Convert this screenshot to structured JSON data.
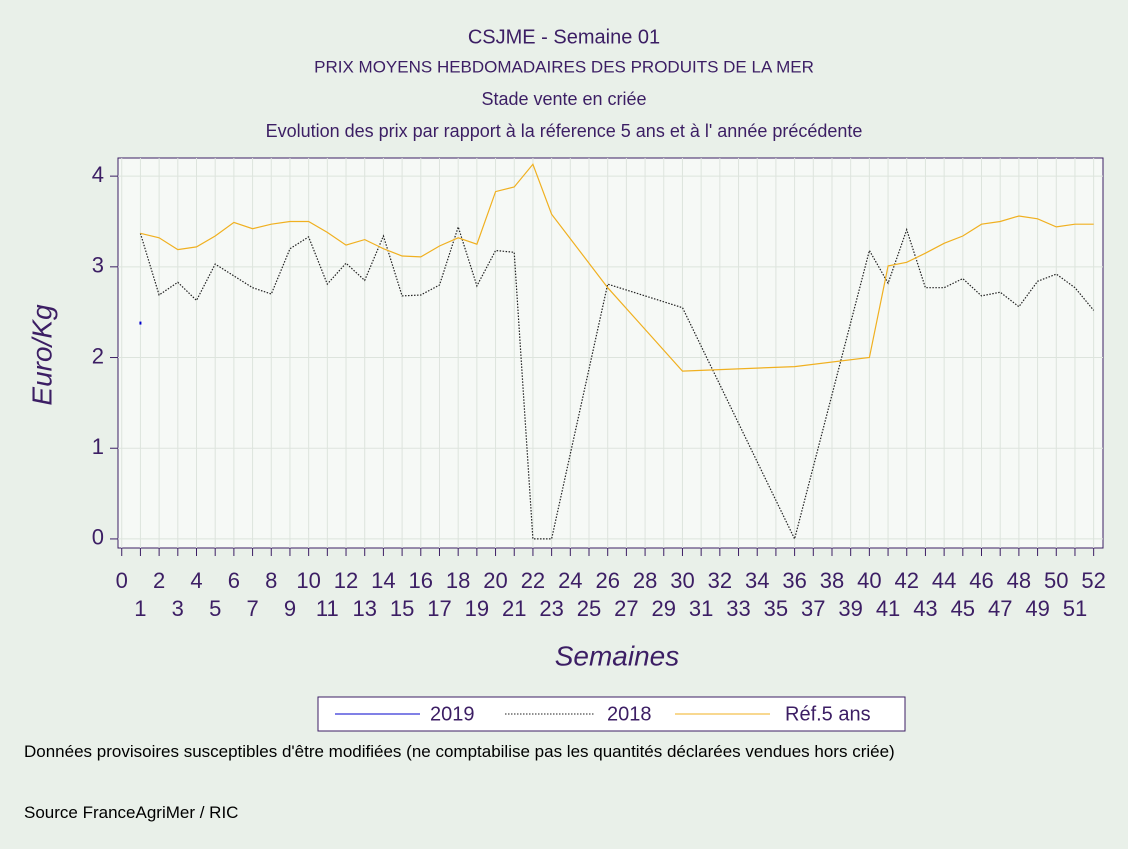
{
  "chart_data": {
    "type": "line",
    "title": "CSJME - Semaine 01",
    "subtitle": "PRIX MOYENS HEBDOMADAIRES DES PRODUITS DE LA MER",
    "subtitle2": "Stade vente en criée",
    "subtitle3": "Evolution des prix par rapport à la réference 5 ans et à l' année précédente",
    "ylabel": "Euro/Kg",
    "xlabel": "Semaines",
    "xlim": [
      -0.2,
      52.5
    ],
    "xticks": [
      0,
      1,
      2,
      3,
      4,
      5,
      6,
      7,
      8,
      9,
      10,
      11,
      12,
      13,
      14,
      15,
      16,
      17,
      18,
      19,
      20,
      21,
      22,
      23,
      24,
      25,
      26,
      27,
      28,
      29,
      30,
      31,
      32,
      33,
      34,
      35,
      36,
      37,
      38,
      39,
      40,
      41,
      42,
      43,
      44,
      45,
      46,
      47,
      48,
      49,
      50,
      51,
      52
    ],
    "ylim": [
      -0.1,
      4.2
    ],
    "yticks": [
      0,
      1,
      2,
      3,
      4
    ],
    "grid": true,
    "series": [
      {
        "name": "2019",
        "color": "#0000cc",
        "dash": "solid",
        "x": [
          1
        ],
        "values": [
          2.38
        ]
      },
      {
        "name": "2018",
        "color": "#222222",
        "dash": "dotted",
        "x": [
          1,
          2,
          3,
          4,
          5,
          6,
          7,
          8,
          9,
          10,
          11,
          12,
          13,
          14,
          15,
          16,
          17,
          18,
          19,
          20,
          21,
          22,
          23,
          26,
          30,
          36,
          40,
          41,
          42,
          43,
          44,
          45,
          46,
          47,
          48,
          49,
          50,
          51,
          52
        ],
        "values": [
          3.37,
          2.69,
          2.83,
          2.63,
          3.03,
          2.9,
          2.77,
          2.7,
          3.2,
          3.33,
          2.81,
          3.04,
          2.85,
          3.34,
          2.68,
          2.69,
          2.8,
          3.44,
          2.79,
          3.18,
          3.16,
          0,
          0,
          2.81,
          2.55,
          0,
          3.18,
          2.82,
          3.41,
          2.77,
          2.77,
          2.87,
          2.68,
          2.72,
          2.56,
          2.84,
          2.92,
          2.77,
          2.52
        ]
      },
      {
        "name": "Réf.5 ans",
        "color": "#f0b020",
        "dash": "solid",
        "x": [
          1,
          2,
          3,
          4,
          5,
          6,
          7,
          8,
          9,
          10,
          11,
          12,
          13,
          14,
          15,
          16,
          17,
          18,
          19,
          20,
          21,
          22,
          23,
          26,
          30,
          36,
          40,
          41,
          42,
          43,
          44,
          45,
          46,
          47,
          48,
          49,
          50,
          51,
          52
        ],
        "values": [
          3.37,
          3.32,
          3.19,
          3.22,
          3.34,
          3.49,
          3.42,
          3.47,
          3.5,
          3.5,
          3.38,
          3.24,
          3.3,
          3.2,
          3.12,
          3.11,
          3.23,
          3.32,
          3.25,
          3.83,
          3.88,
          4.13,
          3.58,
          2.77,
          1.85,
          1.9,
          2.0,
          3.01,
          3.05,
          3.15,
          3.26,
          3.34,
          3.47,
          3.5,
          3.56,
          3.53,
          3.44,
          3.47,
          3.47
        ]
      }
    ],
    "note": "Données provisoires susceptibles d'être modifiées (ne comptabilise pas les quantités déclarées vendues hors criée)",
    "source": "Source FranceAgriMer / RIC"
  }
}
